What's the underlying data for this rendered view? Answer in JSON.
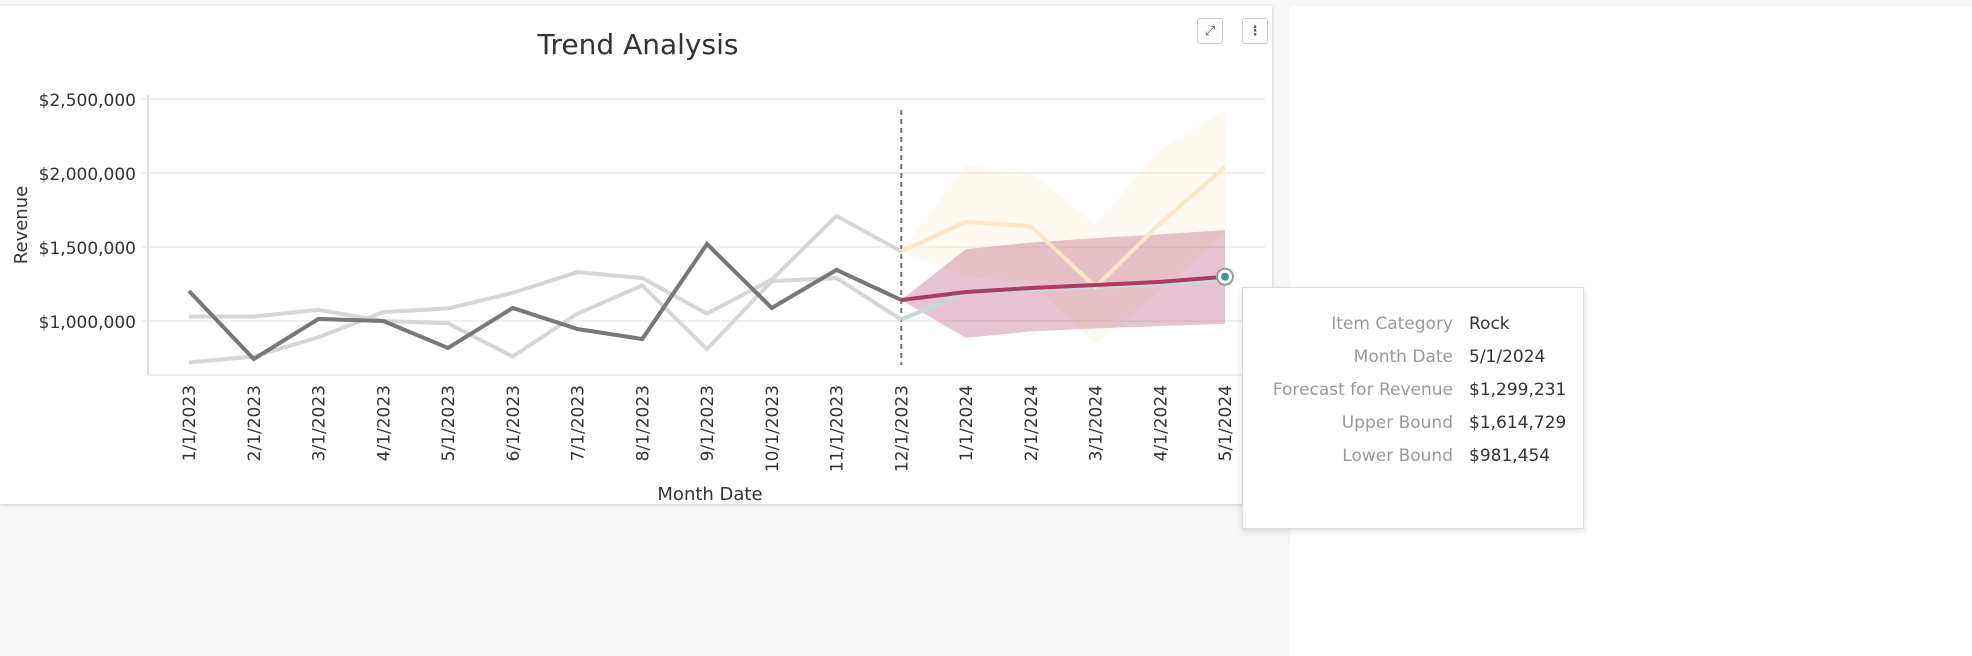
{
  "header": {
    "title": "Trend Analysis",
    "expand_icon": "expand-icon",
    "menu_icon": "vertical-dots-icon"
  },
  "chart_data": {
    "type": "line",
    "title": "Trend Analysis",
    "xlabel": "Month Date",
    "ylabel": "Revenue",
    "ylim": [
      635000,
      2500000
    ],
    "yticks": [
      "$1,000,000",
      "$1,500,000",
      "$2,000,000",
      "$2,500,000"
    ],
    "ytick_values": [
      1000000,
      1500000,
      2000000,
      2500000
    ],
    "grid": true,
    "categories": [
      "1/1/2023",
      "2/1/2023",
      "3/1/2023",
      "4/1/2023",
      "5/1/2023",
      "6/1/2023",
      "7/1/2023",
      "8/1/2023",
      "9/1/2023",
      "10/1/2023",
      "11/1/2023",
      "12/1/2023",
      "1/1/2024",
      "2/1/2024",
      "3/1/2024",
      "4/1/2024",
      "5/1/2024"
    ],
    "forecast_start": "12/1/2023",
    "series": [
      {
        "name": "Rock",
        "color": "#777777",
        "highlighted": true,
        "values": [
          1203000,
          743000,
          1014000,
          1000000,
          818000,
          1088000,
          946000,
          878000,
          1520000,
          1088000,
          1345000,
          1142000,
          null,
          null,
          null,
          null,
          null
        ],
        "forecast": [
          null,
          null,
          null,
          null,
          null,
          null,
          null,
          null,
          null,
          null,
          null,
          1142000,
          1196000,
          1223000,
          1243000,
          1264000,
          1299231
        ],
        "upper": [
          null,
          null,
          null,
          null,
          null,
          null,
          null,
          null,
          null,
          null,
          null,
          1142000,
          1486000,
          1530000,
          1560000,
          1585000,
          1614729
        ],
        "lower": [
          null,
          null,
          null,
          null,
          null,
          null,
          null,
          null,
          null,
          null,
          null,
          1142000,
          885000,
          930000,
          950000,
          965000,
          981454
        ],
        "forecast_color": "#b03a66"
      },
      {
        "color": "#d6d6d6",
        "values": [
          1030000,
          1030000,
          1075000,
          1000000,
          985000,
          760000,
          1050000,
          1240000,
          810000,
          1270000,
          1290000,
          1010000,
          null,
          null,
          null,
          null,
          null
        ],
        "forecast": [
          null,
          null,
          null,
          null,
          null,
          null,
          null,
          null,
          null,
          null,
          null,
          1010000,
          1190000,
          1210000,
          1230000,
          1250000,
          1270000
        ],
        "forecast_color": "#c5d8da"
      },
      {
        "color": "#d6d6d6",
        "values": [
          720000,
          760000,
          890000,
          1060000,
          1085000,
          1190000,
          1330000,
          1290000,
          1050000,
          1280000,
          1710000,
          1470000,
          null,
          null,
          null,
          null,
          null
        ],
        "forecast": [
          null,
          null,
          null,
          null,
          null,
          null,
          null,
          null,
          null,
          null,
          null,
          1470000,
          1670000,
          1640000,
          1230000,
          1660000,
          2040000
        ],
        "upper": [
          null,
          null,
          null,
          null,
          null,
          null,
          null,
          null,
          null,
          null,
          null,
          1470000,
          2050000,
          2000000,
          1650000,
          2150000,
          2430000
        ],
        "lower": [
          null,
          null,
          null,
          null,
          null,
          null,
          null,
          null,
          null,
          null,
          null,
          1470000,
          1300000,
          1260000,
          850000,
          1200000,
          1600000
        ],
        "forecast_color": "#fbe7c6"
      }
    ]
  },
  "tooltip": {
    "rows": [
      {
        "label": "Item Category",
        "value": "Rock"
      },
      {
        "label": "Month Date",
        "value": "5/1/2024"
      },
      {
        "label": "Forecast for Revenue",
        "value": "$1,299,231"
      },
      {
        "label": "Upper Bound",
        "value": "$1,614,729"
      },
      {
        "label": "Lower Bound",
        "value": "$981,454"
      }
    ]
  }
}
